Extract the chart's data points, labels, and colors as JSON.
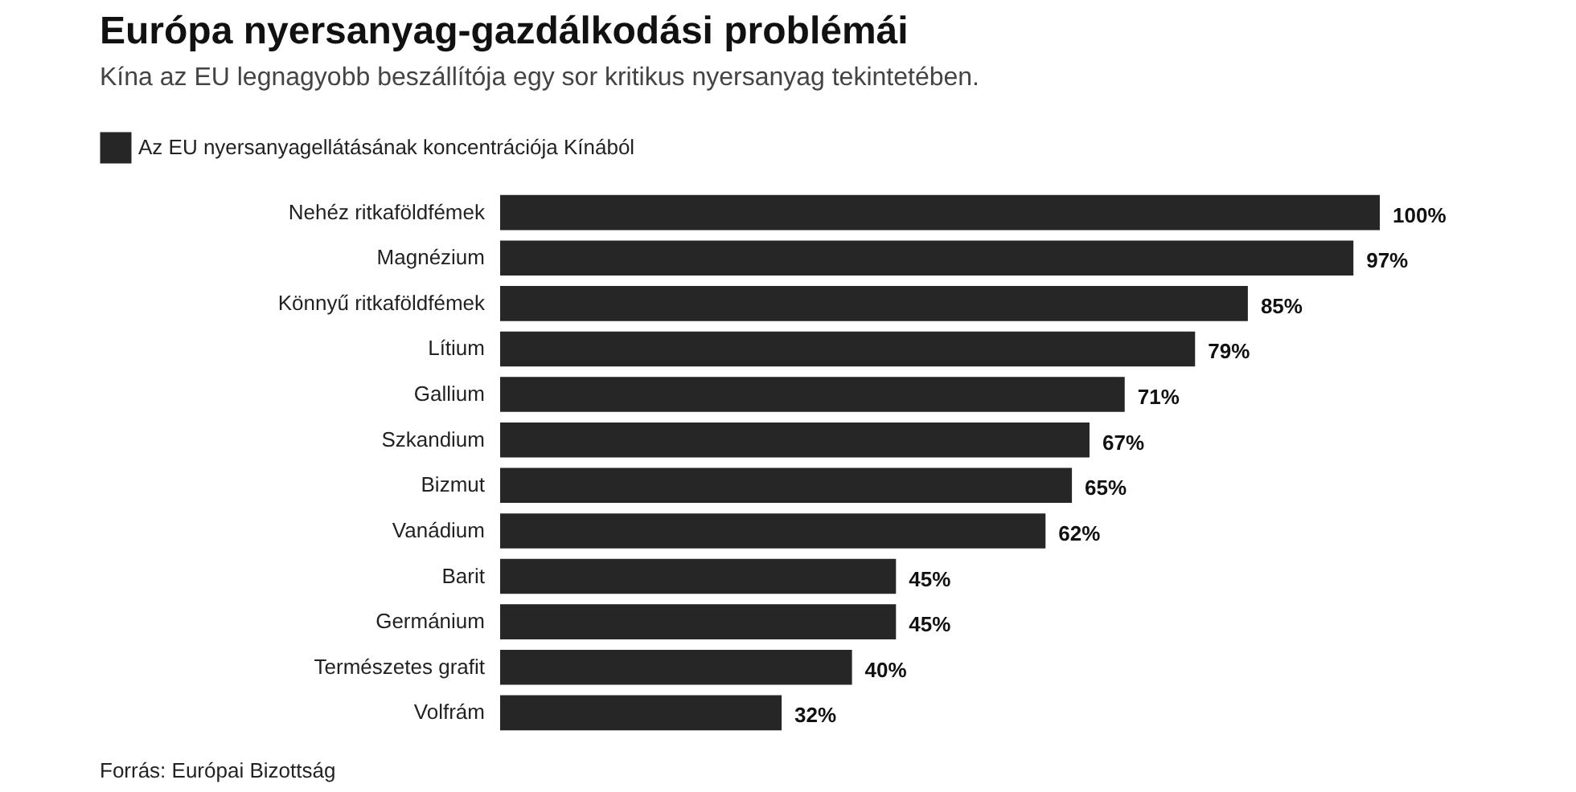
{
  "chart_data": {
    "type": "bar",
    "orientation": "horizontal",
    "title": "Európa nyersanyag-gazdálkodási problémái",
    "subtitle": "Kína az EU legnagyobb beszállítója egy sor kritikus nyersanyag tekintetében.",
    "categories": [
      "Nehéz ritkaföldfémek",
      "Magnézium",
      "Könnyű ritkaföldfémek",
      "Lítium",
      "Gallium",
      "Szkandium",
      "Bizmut",
      "Vanádium",
      "Barit",
      "Germánium",
      "Természetes grafit",
      "Volfrám"
    ],
    "series": [
      {
        "name": "Az EU nyersanyagellátásának koncentrációja Kínából",
        "color": "#262626",
        "values": [
          100,
          97,
          85,
          79,
          71,
          67,
          65,
          62,
          45,
          45,
          40,
          32
        ],
        "value_labels": [
          "100%",
          "97%",
          "85%",
          "79%",
          "71%",
          "67%",
          "65%",
          "62%",
          "45%",
          "45%",
          "40%",
          "32%"
        ]
      }
    ],
    "legend": "top left",
    "grid": false,
    "annotations": [
      "Forrás: Európai Bizottság"
    ]
  }
}
